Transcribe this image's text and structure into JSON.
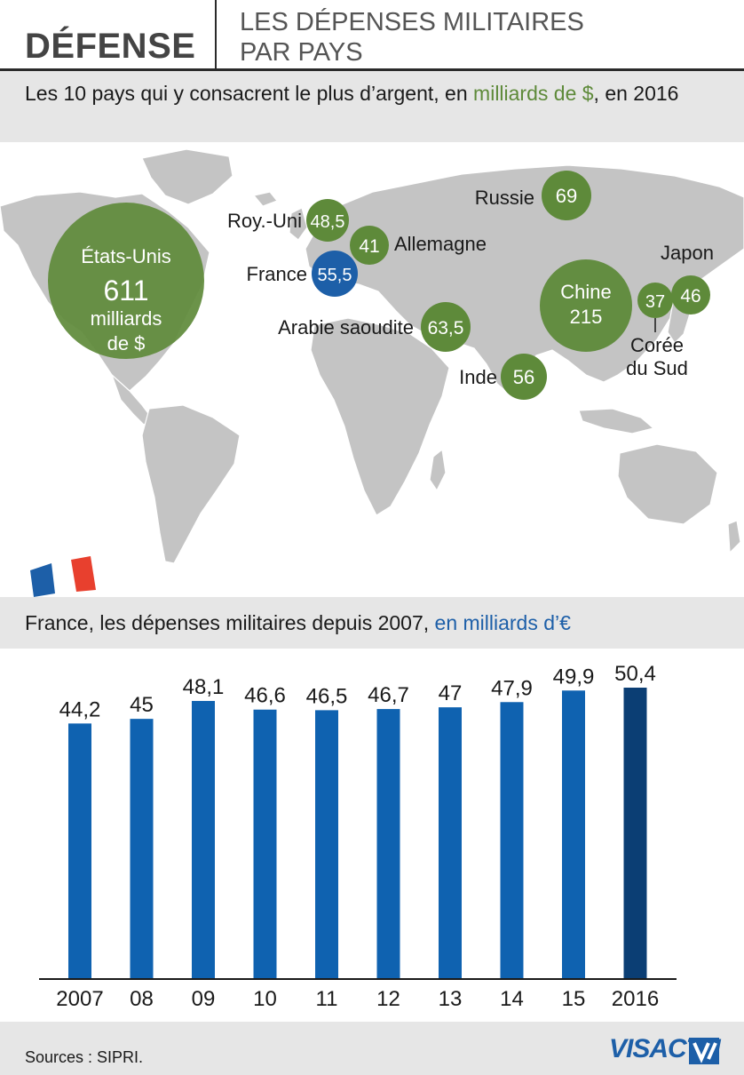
{
  "header": {
    "section": "DÉFENSE",
    "title": "LES DÉPENSES MILITAIRES PAR PAYS"
  },
  "map": {
    "subtitle_prefix": "Les 10 pays qui y consacrent le plus d’argent, en ",
    "subtitle_unit": "milliards de $",
    "subtitle_suffix": ", en 2016",
    "countries": [
      {
        "name": "États-Unis",
        "value": "611",
        "unit_line1": "milliards",
        "unit_line2": "de $"
      },
      {
        "name": "Chine",
        "value": "215"
      },
      {
        "name": "Russie",
        "value": "69"
      },
      {
        "name": "Arabie saoudite",
        "value": "63,5"
      },
      {
        "name": "Inde",
        "value": "56"
      },
      {
        "name": "France",
        "value": "55,5"
      },
      {
        "name": "Roy.-Uni",
        "value": "48,5"
      },
      {
        "name": "Japon",
        "value": "46"
      },
      {
        "name": "Allemagne",
        "value": "41"
      },
      {
        "name": "Corée du Sud",
        "name_line1": "Corée",
        "name_line2": "du Sud",
        "value": "37"
      }
    ],
    "colors": {
      "green": "#5e8a3a",
      "blue": "#1d5fa8",
      "land": "#c4c4c4"
    }
  },
  "bars": {
    "subtitle_prefix": "France, les dépenses militaires depuis 2007, ",
    "subtitle_unit": "en milliards d’€"
  },
  "chart_data": {
    "type": "bar",
    "categories": [
      "2007",
      "08",
      "09",
      "10",
      "11",
      "12",
      "13",
      "14",
      "15",
      "2016"
    ],
    "values": [
      44.2,
      45,
      48.1,
      46.6,
      46.5,
      46.7,
      47,
      47.9,
      49.9,
      50.4
    ],
    "value_labels": [
      "44,2",
      "45",
      "48,1",
      "46,6",
      "46,5",
      "46,7",
      "47",
      "47,9",
      "49,9",
      "50,4"
    ],
    "title": "France, les dépenses militaires depuis 2007, en milliards d’€",
    "xlabel": "",
    "ylabel": "",
    "ylim": [
      0,
      50.4
    ],
    "grid": false,
    "colors": {
      "bar": "#0f62b0",
      "highlight": "#0b3e74"
    }
  },
  "footer": {
    "sources": "Sources : SIPRI.",
    "logo": "VISACTU"
  }
}
